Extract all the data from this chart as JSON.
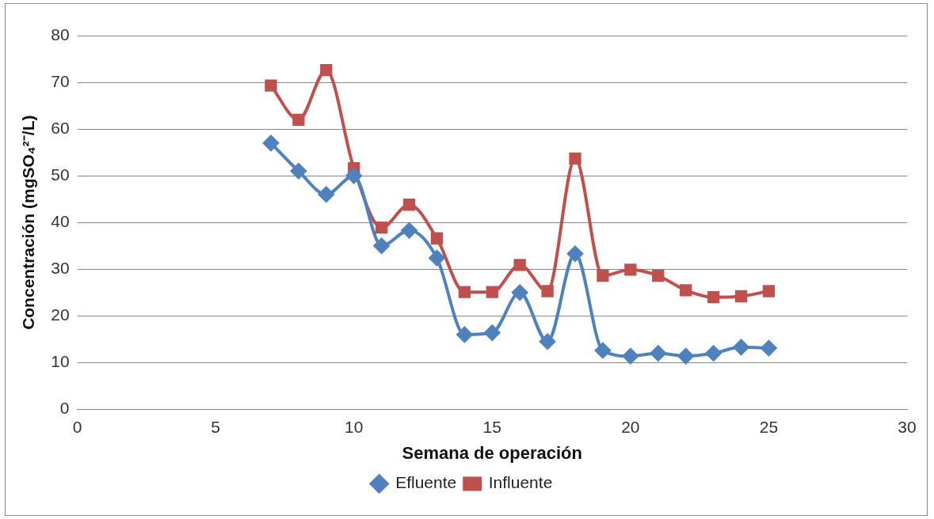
{
  "chart_data": {
    "type": "line",
    "xlabel": "Semana de operación",
    "ylabel": "Concentración (mgSO₄²⁻/L)",
    "x": [
      7,
      8,
      9,
      10,
      11,
      12,
      13,
      14,
      15,
      16,
      17,
      18,
      19,
      20,
      21,
      22,
      23,
      24,
      25
    ],
    "series": [
      {
        "name": "Efluente",
        "color": "#4f81bd",
        "marker": "diamond",
        "values": [
          57,
          51,
          46,
          50,
          35,
          38.3,
          32.4,
          16,
          16.4,
          25,
          14.5,
          33.3,
          12.6,
          11.4,
          12,
          11.4,
          12,
          13.3,
          13.1
        ]
      },
      {
        "name": "Influente",
        "color": "#c0504d",
        "marker": "square",
        "values": [
          69.3,
          62,
          72.6,
          51.6,
          38.9,
          43.8,
          36.6,
          25.1,
          25.1,
          30.9,
          25.3,
          53.7,
          28.6,
          29.9,
          28.6,
          25.5,
          24,
          24.2,
          25.3
        ]
      }
    ],
    "xlim": [
      0,
      30
    ],
    "xticks": [
      0,
      5,
      10,
      15,
      20,
      25,
      30
    ],
    "ylim": [
      0,
      80
    ],
    "yticks": [
      0,
      10,
      20,
      30,
      40,
      50,
      60,
      70,
      80
    ],
    "grid": "y",
    "legend": "bottom",
    "line_style": "solid"
  }
}
